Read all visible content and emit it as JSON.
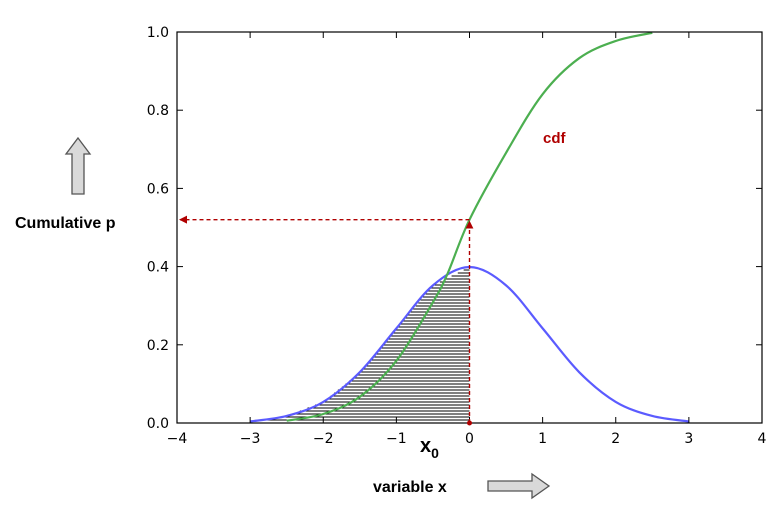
{
  "chart_data": {
    "type": "line",
    "title": "",
    "xlabel": "variable x",
    "ylabel": "Cumulative p",
    "xlim": [
      -4,
      4
    ],
    "ylim": [
      0.0,
      1.0
    ],
    "x_ticks": [
      "−4",
      "−3",
      "−2",
      "−1",
      "0",
      "1",
      "2",
      "3",
      "4"
    ],
    "x_tick_values": [
      -4,
      -3,
      -2,
      -1,
      0,
      1,
      2,
      3,
      4
    ],
    "y_ticks": [
      "0.0",
      "0.2",
      "0.4",
      "0.6",
      "0.8",
      "1.0"
    ],
    "y_tick_values": [
      0.0,
      0.2,
      0.4,
      0.6,
      0.8,
      1.0
    ],
    "grid": false,
    "x0_value": 0,
    "cumulative_p_value": 0.52,
    "shaded_region": {
      "x_from": -3,
      "x_to": 0
    },
    "series": [
      {
        "name": "",
        "role": "pdf",
        "color": "#5b5bff",
        "x": [
          -3.0,
          -2.5,
          -2.0,
          -1.5,
          -1.0,
          -0.5,
          0.0,
          0.5,
          1.0,
          1.5,
          2.0,
          2.5,
          3.0
        ],
        "y": [
          0.004,
          0.018,
          0.054,
          0.13,
          0.242,
          0.352,
          0.399,
          0.352,
          0.242,
          0.13,
          0.054,
          0.018,
          0.004
        ]
      },
      {
        "name": "cdf",
        "role": "cdf",
        "color": "#4caf50",
        "x": [
          -2.5,
          -2.0,
          -1.5,
          -1.0,
          -0.5,
          -0.3,
          0.0,
          0.5,
          1.0,
          1.5,
          2.0,
          2.5
        ],
        "y": [
          0.006,
          0.023,
          0.067,
          0.159,
          0.309,
          0.382,
          0.52,
          0.691,
          0.841,
          0.933,
          0.977,
          0.998
        ]
      }
    ],
    "annotations": {
      "x0_label": "x",
      "x0_subscript": "0",
      "cdf_label": "cdf"
    },
    "colors": {
      "axis": "#000000",
      "annotation_arrow": "#b00000",
      "hatch": "#000000",
      "big_arrow_fill": "#d9d9d9",
      "big_arrow_stroke": "#555555"
    }
  }
}
